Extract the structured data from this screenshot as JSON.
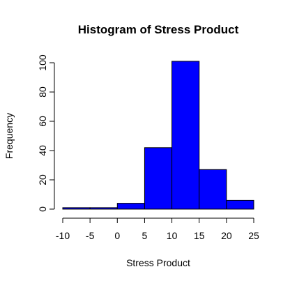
{
  "chart_data": {
    "type": "histogram",
    "title": "Histogram of Stress Product",
    "xlabel": "Stress Product",
    "ylabel": "Frequency",
    "bin_edges": [
      -10,
      -5,
      0,
      5,
      10,
      15,
      20,
      25
    ],
    "values": [
      1,
      1,
      4,
      42,
      101,
      27,
      6
    ],
    "xlim": [
      -10,
      25
    ],
    "ylim": [
      0,
      100
    ],
    "xticks": [
      -10,
      -5,
      0,
      5,
      10,
      15,
      20,
      25
    ],
    "yticks": [
      0,
      20,
      40,
      60,
      80,
      100
    ],
    "bar_color": "#0000ff",
    "grid": false
  }
}
